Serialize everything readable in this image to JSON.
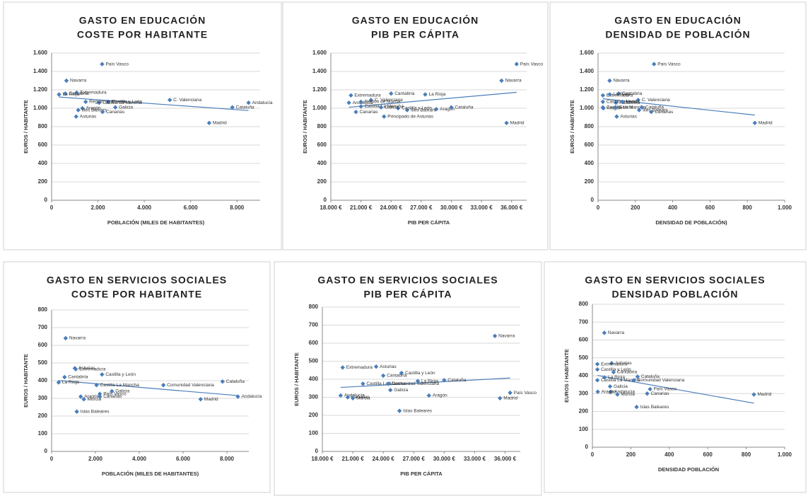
{
  "chart_data": [
    {
      "type": "scatter",
      "title": "GASTO EN EDUCACIÓN",
      "subtitle": "COSTE POR HABITANTE",
      "x_label": "POBLACIÓN (MILES DE HABITANTES)",
      "y_label": "EUROS / HABITANTE",
      "color": "#4a7ebb",
      "trendline": true,
      "labels": [
        "Andalucía",
        "Aragón",
        "Asturias",
        "Illes Balears",
        "Canarias",
        "Cantabria",
        "Castilla y León",
        "Castilla La Mancha",
        "Cataluña",
        "C. Valenciana",
        "Extremadura",
        "Galicia",
        "Madrid",
        "Región de Murcia",
        "Navarra",
        "País Vasco",
        "La Rioja"
      ],
      "x": [
        8500,
        1330,
        1060,
        1150,
        2200,
        590,
        2450,
        2050,
        7800,
        5100,
        1080,
        2750,
        6800,
        1470,
        640,
        2180,
        320
      ],
      "values": [
        1060,
        1000,
        910,
        980,
        960,
        1160,
        1070,
        1060,
        1010,
        1090,
        1170,
        1010,
        840,
        1070,
        1300,
        1480,
        1150
      ],
      "xlim": [
        0,
        9000
      ],
      "xticks": [
        0,
        {
          "value": 2000,
          "label": "2.000"
        },
        {
          "value": 4000,
          "label": "4.000"
        },
        {
          "value": 6000,
          "label": "6.000"
        },
        {
          "value": 8000,
          "label": "8.000"
        }
      ],
      "ylim": [
        0,
        1600
      ],
      "yticks": [
        0,
        200,
        400,
        600,
        800,
        {
          "value": 1000,
          "label": "1.000"
        },
        {
          "value": 1200,
          "label": "1.200"
        },
        {
          "value": 1400,
          "label": "1.400"
        },
        {
          "value": 1600,
          "label": "1.600"
        }
      ],
      "grid": true
    },
    {
      "type": "scatter",
      "title": "GASTO EN EDUCACIÓN",
      "subtitle": "PIB PER CÁPITA",
      "x_label": "PIB PER CÁPITA",
      "y_label": "EUROS / HABITANTE",
      "color": "#4a7ebb",
      "trendline": true,
      "labels": [
        "Andalucía",
        "Aragón",
        "Principado de Asturias",
        "Illes Balears",
        "Canarias",
        "Cantabria",
        "Castilla y León",
        "Castilla La Mancha",
        "Cataluña",
        "C. Valenciana",
        "Extremadura",
        "Galicia",
        "Madrid",
        "Región de Murcia",
        "Navarra",
        "País Vasco",
        "La Rioja"
      ],
      "x": [
        19800,
        28500,
        23300,
        25600,
        20500,
        24000,
        24700,
        21000,
        30000,
        22000,
        20000,
        23000,
        35500,
        21000,
        35000,
        36500,
        27400
      ],
      "values": [
        1060,
        990,
        910,
        980,
        960,
        1160,
        1000,
        1020,
        1010,
        1090,
        1140,
        1010,
        840,
        1070,
        1300,
        1480,
        1150
      ],
      "xlim": [
        18000,
        37500
      ],
      "xticks": [
        {
          "value": 18000,
          "label": "18.000 €"
        },
        {
          "value": 21000,
          "label": "21.000 €"
        },
        {
          "value": 24000,
          "label": "24.000 €"
        },
        {
          "value": 27000,
          "label": "27.000 €"
        },
        {
          "value": 30000,
          "label": "30.000 €"
        },
        {
          "value": 33000,
          "label": "33.000 €"
        },
        {
          "value": 36000,
          "label": "36.000 €"
        }
      ],
      "ylim": [
        0,
        1600
      ],
      "yticks": [
        0,
        200,
        400,
        600,
        800,
        {
          "value": 1000,
          "label": "1.000"
        },
        {
          "value": 1200,
          "label": "1.200"
        },
        {
          "value": 1400,
          "label": "1.400"
        },
        {
          "value": 1600,
          "label": "1.600"
        }
      ],
      "grid": true
    },
    {
      "type": "scatter",
      "title": "GASTO EN EDUCACIÓN",
      "subtitle": "DENSIDAD DE POBLACIÓN",
      "x_label": "DENSIDAD DE POBLACIÓN)",
      "y_label": "EUROS / HABITANTE",
      "color": "#4a7ebb",
      "trendline": true,
      "labels": [
        "Andalucía",
        "Aragón",
        "Asturias",
        "Illes Balears",
        "Canarias",
        "Cantabria",
        "Castilla y León",
        "Castilla La Mancha",
        "Cataluña",
        "C. Valenciana",
        "Extremadura",
        "Galicia",
        "Madrid",
        "Murcia",
        "Navarra",
        "País Vasco",
        "La Rioja"
      ],
      "x": [
        96,
        28,
        100,
        220,
        285,
        110,
        26,
        26,
        235,
        215,
        26,
        92,
        840,
        130,
        62,
        300,
        63
      ],
      "values": [
        1060,
        1000,
        910,
        980,
        960,
        1160,
        1070,
        1010,
        1010,
        1090,
        1140,
        1010,
        840,
        1070,
        1300,
        1480,
        1150
      ],
      "xlim": [
        0,
        1000
      ],
      "xticks": [
        0,
        200,
        400,
        600,
        800,
        {
          "value": 1000,
          "label": "1.000"
        }
      ],
      "ylim": [
        0,
        1600
      ],
      "yticks": [
        0,
        200,
        400,
        600,
        800,
        {
          "value": 1000,
          "label": "1.000"
        },
        {
          "value": 1200,
          "label": "1.200"
        },
        {
          "value": 1400,
          "label": "1.400"
        },
        {
          "value": 1600,
          "label": "1.600"
        }
      ],
      "grid": true
    },
    {
      "type": "scatter",
      "title": "GASTO EN SERVICIOS SOCIALES",
      "subtitle": "COSTE POR HABITANTE",
      "x_label": "POBLACIÓN (MILES DE HABITANTES)",
      "y_label": "EUROS / HABITANTE",
      "color": "#4a7ebb",
      "trendline": true,
      "labels": [
        "Andalucía",
        "Aragón",
        "Asturias",
        "Islas Baleares",
        "Canarias",
        "Cantabria",
        "Castilla y León",
        "Castilla La Mancha",
        "Cataluña",
        "Comunidad Valenciana",
        "Extremadura",
        "Galicia",
        "Madrid",
        "Murcia",
        "Navarra",
        "País Vasco",
        "La Rioja"
      ],
      "x": [
        8500,
        1330,
        1060,
        1150,
        2200,
        590,
        2300,
        2050,
        7800,
        5100,
        1100,
        2750,
        6800,
        1470,
        640,
        2200,
        320
      ],
      "values": [
        310,
        310,
        470,
        225,
        310,
        420,
        435,
        375,
        395,
        375,
        465,
        340,
        295,
        295,
        640,
        325,
        390
      ],
      "xlim": [
        0,
        9000
      ],
      "xticks": [
        0,
        {
          "value": 2000,
          "label": "2.000"
        },
        {
          "value": 4000,
          "label": "4.000"
        },
        {
          "value": 6000,
          "label": "6.000"
        },
        {
          "value": 8000,
          "label": "8.000"
        }
      ],
      "ylim": [
        0,
        800
      ],
      "yticks": [
        0,
        100,
        200,
        300,
        400,
        500,
        600,
        700,
        800
      ],
      "grid": true
    },
    {
      "type": "scatter",
      "title": "GASTO EN SERVICIOS SOCIALES",
      "subtitle": "PIB PER CÁPITA",
      "x_label": "PIB PER CÁPITA",
      "y_label": "EUROS / HABITANTE",
      "color": "#4a7ebb",
      "trendline": true,
      "labels": [
        "Andalucía",
        "Aragón",
        "Asturias",
        "Islas Baleares",
        "Canarias",
        "Cantabria",
        "Castilla y León",
        "Castilla La Mancha",
        "Cataluña",
        "Comunidad Valenciana",
        "Extremadura",
        "Galicia",
        "Madrid",
        "Murcia",
        "Navarra",
        "País Vasco",
        "La Rioja"
      ],
      "x": [
        19800,
        28500,
        23300,
        25600,
        20500,
        24000,
        25800,
        22000,
        30000,
        24500,
        20000,
        24700,
        35500,
        21000,
        35000,
        36500,
        27400
      ],
      "values": [
        310,
        310,
        470,
        225,
        300,
        420,
        435,
        375,
        395,
        375,
        465,
        340,
        295,
        295,
        640,
        325,
        390
      ],
      "xlim": [
        18000,
        37500
      ],
      "xticks": [
        {
          "value": 18000,
          "label": "18.000 €"
        },
        {
          "value": 21000,
          "label": "21.000 €"
        },
        {
          "value": 24000,
          "label": "24.000 €"
        },
        {
          "value": 27000,
          "label": "27.000 €"
        },
        {
          "value": 30000,
          "label": "30.000 €"
        },
        {
          "value": 33000,
          "label": "33.000 €"
        },
        {
          "value": 36000,
          "label": "36.000 €"
        }
      ],
      "ylim": [
        0,
        800
      ],
      "yticks": [
        0,
        100,
        200,
        300,
        400,
        500,
        600,
        700,
        800
      ],
      "grid": true
    },
    {
      "type": "scatter",
      "title": "GASTO EN SERVICIOS SOCIALES",
      "subtitle": "DENSIDAD POBLACIÓN",
      "x_label": "DENSIDAD POBLACIÓN",
      "y_label": "EUROS / HABITANTE",
      "color": "#4a7ebb",
      "trendline": true,
      "labels": [
        "Andalucía",
        "Aragón",
        "Asturias",
        "Islas Baleares",
        "Canarias",
        "Cantabria",
        "Castilla y León",
        "Castilla La Mancha",
        "Cataluña",
        "Comunidad Valenciana",
        "Extremadura",
        "Galicia",
        "Madrid",
        "Murcia",
        "Navarra",
        "País Vasco",
        "La Rioja"
      ],
      "x": [
        96,
        28,
        100,
        230,
        285,
        110,
        26,
        26,
        235,
        215,
        26,
        92,
        840,
        130,
        62,
        300,
        63
      ],
      "values": [
        310,
        310,
        470,
        225,
        300,
        420,
        435,
        375,
        395,
        375,
        465,
        340,
        295,
        295,
        640,
        325,
        390
      ],
      "xlim": [
        0,
        1000
      ],
      "xticks": [
        0,
        200,
        400,
        600,
        800,
        {
          "value": 1000,
          "label": "1.000"
        }
      ],
      "ylim": [
        0,
        800
      ],
      "yticks": [
        0,
        100,
        200,
        300,
        400,
        500,
        600,
        700,
        800
      ],
      "grid": true
    }
  ]
}
